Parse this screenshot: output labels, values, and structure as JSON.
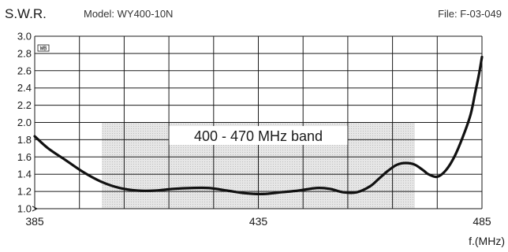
{
  "header": {
    "title": "S.W.R.",
    "model": "Model: WY400-10N",
    "file": "File: F-03-049"
  },
  "chart_data": {
    "type": "line",
    "title": "S.W.R.",
    "xlabel": "f.(MHz)",
    "ylabel": "",
    "xlim": [
      385,
      485
    ],
    "ylim": [
      1.0,
      3.0
    ],
    "x_tick_labels": [
      "385",
      "435",
      "485"
    ],
    "y_tick_labels": [
      "1.0",
      "1.2",
      "1.4",
      "1.6",
      "1.8",
      "2.0",
      "2.2",
      "2.4",
      "2.6",
      "2.8",
      "3.0"
    ],
    "grid": true,
    "band": {
      "label": "400 - 470 MHz band",
      "x_start": 400,
      "x_end": 470,
      "y_start": 1.0,
      "y_end": 2.0
    },
    "corner_mark": "WB",
    "series": [
      {
        "x": [
          385,
          388,
          392,
          396,
          400,
          404,
          408,
          412,
          416,
          420,
          424,
          428,
          432,
          436,
          440,
          444,
          448,
          451,
          454,
          457,
          460,
          462,
          464,
          466,
          468,
          470,
          472,
          473,
          475,
          477,
          479,
          481,
          482.5,
          483.5,
          484.3,
          485
        ],
        "y": [
          1.84,
          1.7,
          1.56,
          1.42,
          1.31,
          1.24,
          1.21,
          1.21,
          1.23,
          1.24,
          1.24,
          1.21,
          1.18,
          1.17,
          1.19,
          1.21,
          1.24,
          1.23,
          1.19,
          1.19,
          1.26,
          1.35,
          1.44,
          1.51,
          1.53,
          1.51,
          1.44,
          1.4,
          1.37,
          1.45,
          1.62,
          1.87,
          2.1,
          2.35,
          2.55,
          2.76
        ]
      }
    ]
  }
}
